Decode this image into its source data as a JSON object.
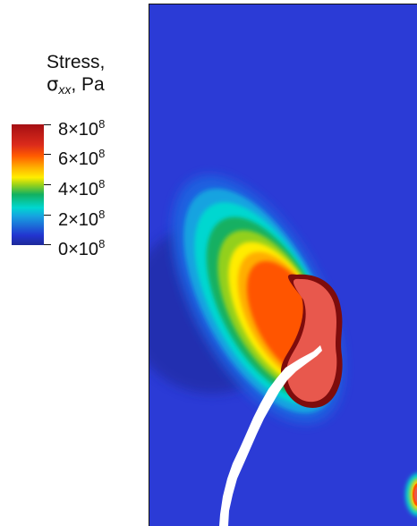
{
  "legend": {
    "title_line1": "Stress,",
    "title_symbol": "σ",
    "title_subscript": "xx",
    "title_unit": ", Pa",
    "ticks": [
      {
        "mantissa": "8×10",
        "exponent": "8",
        "value": 800000000
      },
      {
        "mantissa": "6×10",
        "exponent": "8",
        "value": 600000000
      },
      {
        "mantissa": "4×10",
        "exponent": "8",
        "value": 400000000
      },
      {
        "mantissa": "2×10",
        "exponent": "8",
        "value": 200000000
      },
      {
        "mantissa": "0×10",
        "exponent": "8",
        "value": 0
      }
    ],
    "range_pa": [
      0,
      800000000
    ],
    "colors": [
      "#1d2a9a",
      "#2234d0",
      "#16a3e0",
      "#00d7d0",
      "#12b060",
      "#9ad21a",
      "#ffee00",
      "#ffb200",
      "#ff5a00",
      "#db2b1b",
      "#a50f13"
    ]
  },
  "field": {
    "background_color": "#2b3bd6",
    "crack_color": "#ffffff",
    "high_stress_color": "#e8584d"
  }
}
